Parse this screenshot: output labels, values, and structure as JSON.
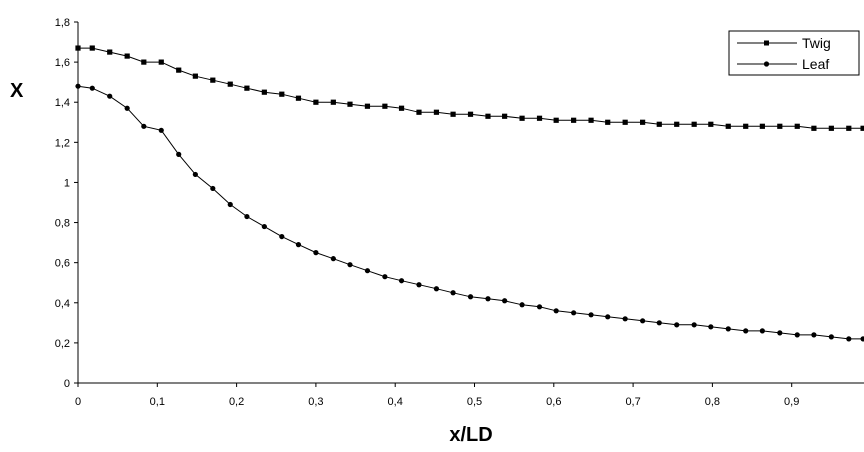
{
  "chart_data": {
    "type": "line",
    "title": "",
    "xlabel": "x/LD",
    "ylabel": "X",
    "xlim": [
      0,
      1
    ],
    "ylim": [
      0,
      1.8
    ],
    "x_ticks": [
      "0",
      "0,1",
      "0,2",
      "0,3",
      "0,4",
      "0,5",
      "0,6",
      "0,7",
      "0,8",
      "0,9"
    ],
    "y_ticks": [
      "0",
      "0,2",
      "0,4",
      "0,6",
      "0,8",
      "1",
      "1,2",
      "1,4",
      "1,6",
      "1,8"
    ],
    "grid": false,
    "legend": "top-right",
    "series": [
      {
        "name": "Twig",
        "marker": "square",
        "color": "#000000",
        "x": [
          0,
          0.018,
          0.04,
          0.062,
          0.083,
          0.105,
          0.127,
          0.148,
          0.17,
          0.192,
          0.213,
          0.235,
          0.257,
          0.278,
          0.3,
          0.322,
          0.343,
          0.365,
          0.387,
          0.408,
          0.43,
          0.452,
          0.473,
          0.495,
          0.517,
          0.538,
          0.56,
          0.582,
          0.603,
          0.625,
          0.647,
          0.668,
          0.69,
          0.712,
          0.733,
          0.755,
          0.777,
          0.798,
          0.82,
          0.842,
          0.863,
          0.885,
          0.907,
          0.928,
          0.95,
          0.972,
          0.99
        ],
        "y": [
          1.67,
          1.67,
          1.65,
          1.63,
          1.6,
          1.6,
          1.56,
          1.53,
          1.51,
          1.49,
          1.47,
          1.45,
          1.44,
          1.42,
          1.4,
          1.4,
          1.39,
          1.38,
          1.38,
          1.37,
          1.35,
          1.35,
          1.34,
          1.34,
          1.33,
          1.33,
          1.32,
          1.32,
          1.31,
          1.31,
          1.31,
          1.3,
          1.3,
          1.3,
          1.29,
          1.29,
          1.29,
          1.29,
          1.28,
          1.28,
          1.28,
          1.28,
          1.28,
          1.27,
          1.27,
          1.27,
          1.27
        ]
      },
      {
        "name": "Leaf",
        "marker": "circle",
        "color": "#000000",
        "x": [
          0,
          0.018,
          0.04,
          0.062,
          0.083,
          0.105,
          0.127,
          0.148,
          0.17,
          0.192,
          0.213,
          0.235,
          0.257,
          0.278,
          0.3,
          0.322,
          0.343,
          0.365,
          0.387,
          0.408,
          0.43,
          0.452,
          0.473,
          0.495,
          0.517,
          0.538,
          0.56,
          0.582,
          0.603,
          0.625,
          0.647,
          0.668,
          0.69,
          0.712,
          0.733,
          0.755,
          0.777,
          0.798,
          0.82,
          0.842,
          0.863,
          0.885,
          0.907,
          0.928,
          0.95,
          0.972,
          0.99
        ],
        "y": [
          1.48,
          1.47,
          1.43,
          1.37,
          1.28,
          1.26,
          1.14,
          1.04,
          0.97,
          0.89,
          0.83,
          0.78,
          0.73,
          0.69,
          0.65,
          0.62,
          0.59,
          0.56,
          0.53,
          0.51,
          0.49,
          0.47,
          0.45,
          0.43,
          0.42,
          0.41,
          0.39,
          0.38,
          0.36,
          0.35,
          0.34,
          0.33,
          0.32,
          0.31,
          0.3,
          0.29,
          0.29,
          0.28,
          0.27,
          0.26,
          0.26,
          0.25,
          0.24,
          0.24,
          0.23,
          0.22,
          0.22
        ]
      }
    ]
  }
}
